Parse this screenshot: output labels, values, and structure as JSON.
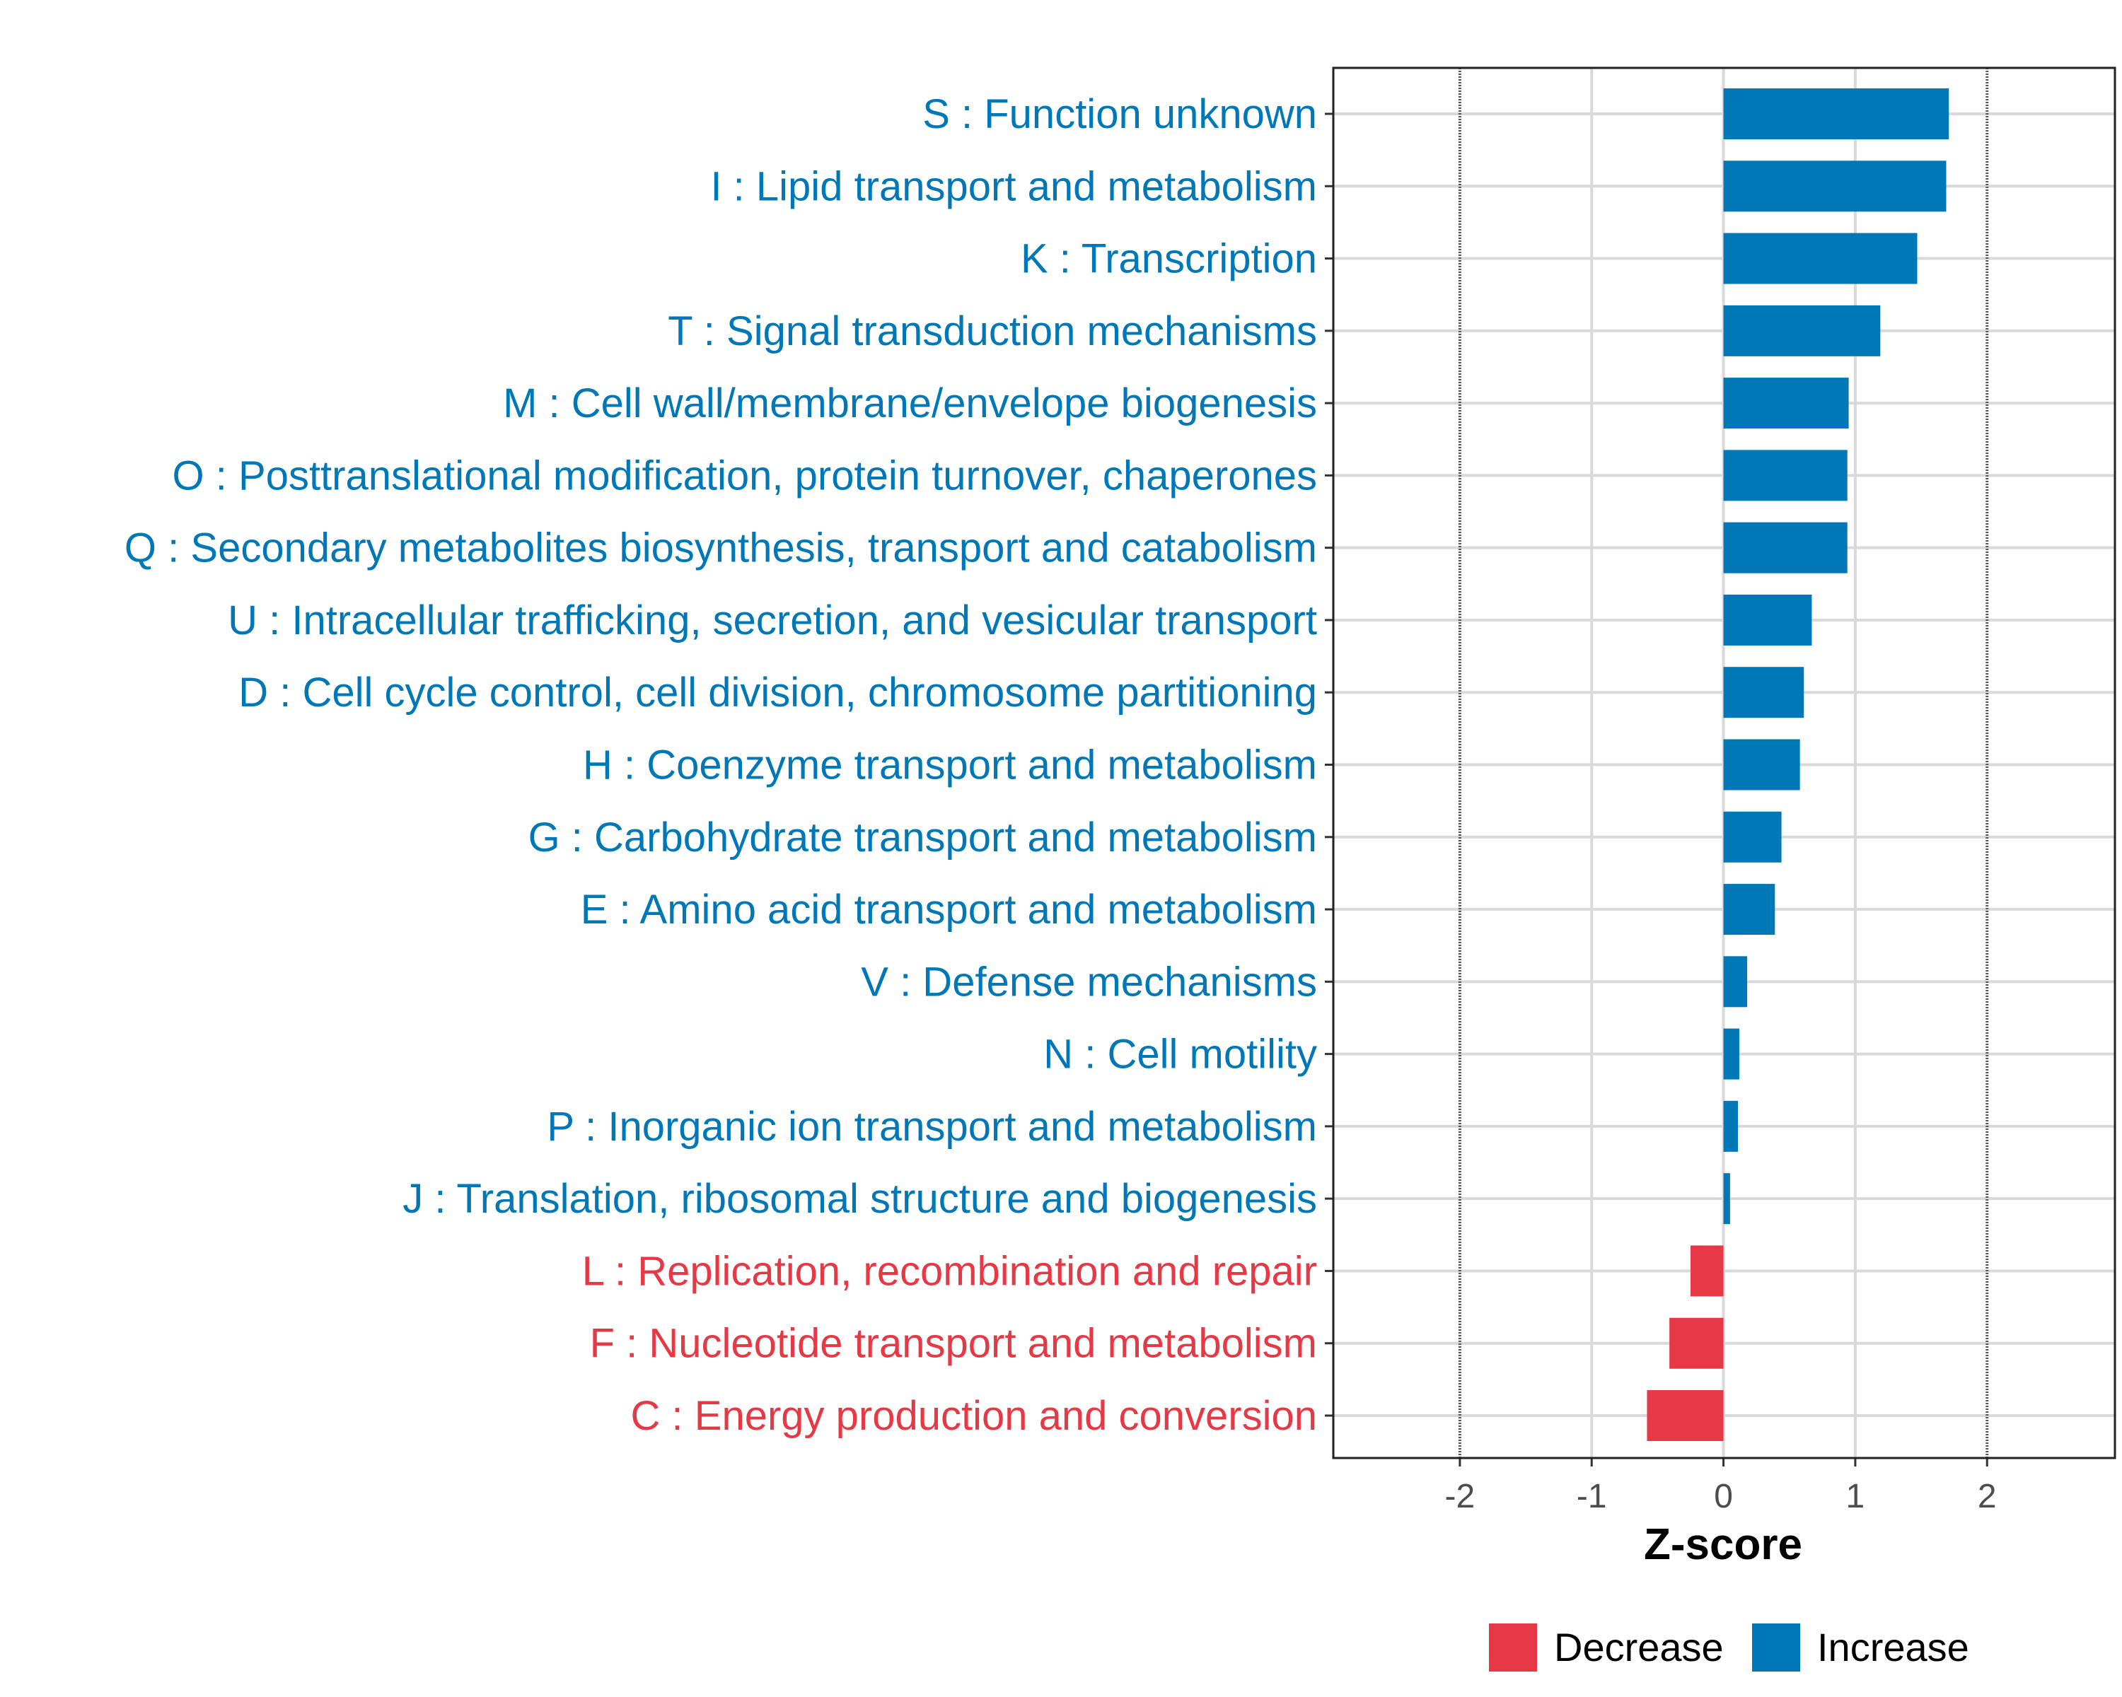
{
  "chart_data": {
    "type": "bar",
    "orientation": "horizontal",
    "title": "",
    "xlabel": "Z-score",
    "ylabel": "",
    "xlim": [
      -2.96,
      2.97
    ],
    "xticks": [
      -2,
      -1,
      0,
      1,
      2
    ],
    "xtick_labels": [
      "-2",
      "-1",
      "0",
      "1",
      "2"
    ],
    "reference_lines": [
      -2,
      2
    ],
    "grid": true,
    "categories": [
      "S : Function unknown",
      "I : Lipid transport and metabolism",
      "K : Transcription",
      "T : Signal transduction mechanisms",
      "M : Cell wall/membrane/envelope biogenesis",
      "O : Posttranslational modification, protein turnover, chaperones",
      "Q : Secondary metabolites biosynthesis, transport and catabolism",
      "U : Intracellular trafficking, secretion, and vesicular transport",
      "D : Cell cycle control, cell division, chromosome partitioning",
      "H : Coenzyme transport and metabolism",
      "G : Carbohydrate transport and metabolism",
      "E : Amino acid transport and metabolism",
      "V : Defense mechanisms",
      "N : Cell motility",
      "P : Inorganic ion transport and metabolism",
      "J : Translation, ribosomal structure and biogenesis",
      "L : Replication, recombination and repair",
      "F : Nucleotide transport and metabolism",
      "C : Energy production and conversion"
    ],
    "values": [
      1.71,
      1.69,
      1.47,
      1.19,
      0.95,
      0.94,
      0.94,
      0.67,
      0.61,
      0.58,
      0.44,
      0.39,
      0.18,
      0.12,
      0.11,
      0.05,
      -0.25,
      -0.41,
      -0.58
    ],
    "groups": [
      "Increase",
      "Increase",
      "Increase",
      "Increase",
      "Increase",
      "Increase",
      "Increase",
      "Increase",
      "Increase",
      "Increase",
      "Increase",
      "Increase",
      "Increase",
      "Increase",
      "Increase",
      "Increase",
      "Decrease",
      "Decrease",
      "Decrease"
    ],
    "legend": {
      "position": "bottom",
      "entries": [
        {
          "label": "Decrease",
          "color": "#E63946"
        },
        {
          "label": "Increase",
          "color": "#0077B6"
        }
      ]
    }
  }
}
